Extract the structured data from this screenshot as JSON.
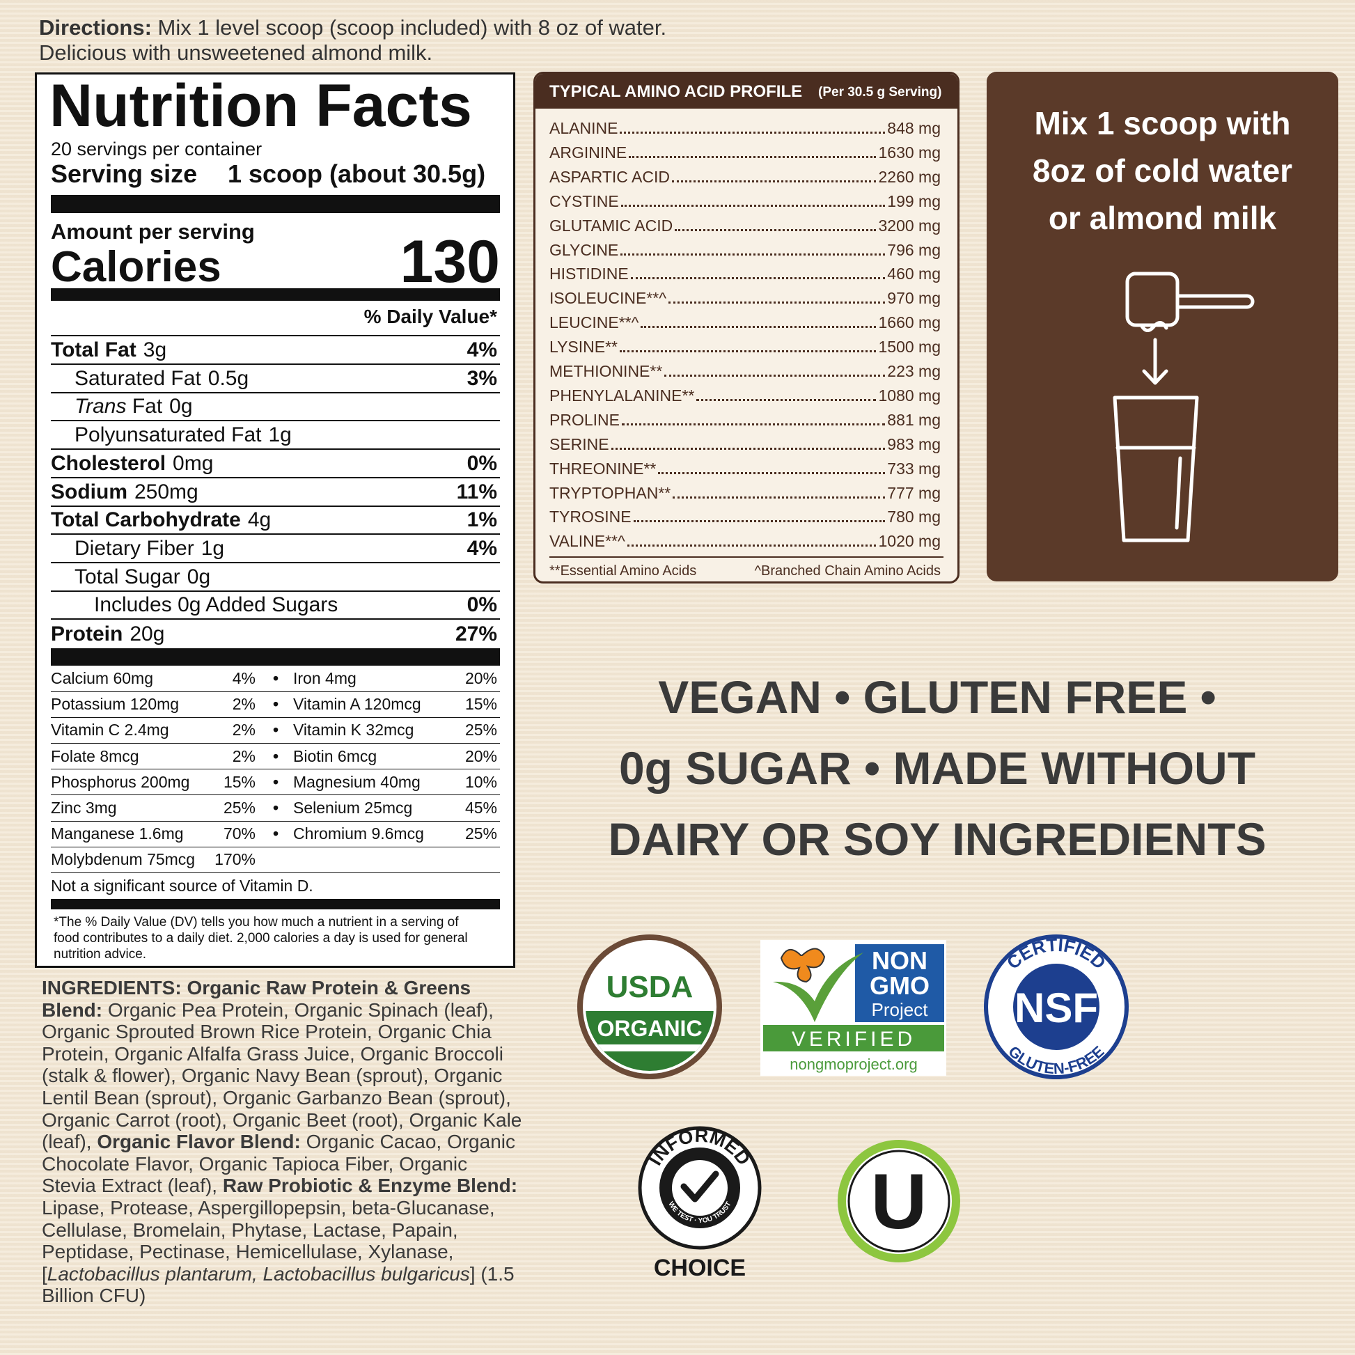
{
  "directions": {
    "label": "Directions:",
    "lines": [
      "Mix 1 level scoop (scoop included) with 8 oz of water.",
      "Delicious with unsweetened almond milk."
    ]
  },
  "nutrition_facts": {
    "title": "Nutrition Facts",
    "servings": "20 servings per container",
    "serving_size_label": "Serving size",
    "serving_size": "1 scoop (about 30.5g)",
    "amount_per_serving": "Amount per serving",
    "calories_label": "Calories",
    "calories": 130,
    "daily_value_header": "% Daily Value*",
    "rows": [
      {
        "name": "Total Fat",
        "amount": "3g",
        "dv": "4%"
      },
      {
        "name": "Saturated Fat",
        "amount": "0.5g",
        "dv": "3%"
      },
      {
        "name_italic": "Trans",
        "name": "Fat",
        "amount": "0g"
      },
      {
        "name": "Polyunsaturated Fat",
        "amount": "1g"
      },
      {
        "name": "Cholesterol",
        "amount": "0mg",
        "dv": "0%"
      },
      {
        "name": "Sodium",
        "amount": "250mg",
        "dv": "11%"
      },
      {
        "name": "Total Carbohydrate",
        "amount": "4g",
        "dv": "1%"
      },
      {
        "name": "Dietary Fiber",
        "amount": "1g",
        "dv": "4%"
      },
      {
        "name": "Total Sugar",
        "amount": "0g"
      },
      {
        "name": "Includes 0g Added Sugars",
        "dv": "0%"
      },
      {
        "name": "Protein",
        "amount": "20g",
        "dv": "27%"
      }
    ],
    "micronutrients": [
      [
        {
          "name": "Calcium 60mg",
          "dv": "4%"
        },
        {
          "name": "Iron 4mg",
          "dv": "20%"
        }
      ],
      [
        {
          "name": "Potassium 120mg",
          "dv": "2%"
        },
        {
          "name": "Vitamin A 120mcg",
          "dv": "15%"
        }
      ],
      [
        {
          "name": "Vitamin C 2.4mg",
          "dv": "2%"
        },
        {
          "name": "Vitamin K 32mcg",
          "dv": "25%"
        }
      ],
      [
        {
          "name": "Folate 8mcg",
          "dv": "2%"
        },
        {
          "name": "Biotin 6mcg",
          "dv": "20%"
        }
      ],
      [
        {
          "name": "Phosphorus 200mg",
          "dv": "15%"
        },
        {
          "name": "Magnesium 40mg",
          "dv": "10%"
        }
      ],
      [
        {
          "name": "Zinc 3mg",
          "dv": "25%"
        },
        {
          "name": "Selenium 25mcg",
          "dv": "45%"
        }
      ],
      [
        {
          "name": "Manganese 1.6mg",
          "dv": "70%"
        },
        {
          "name": "Chromium 9.6mcg",
          "dv": "25%"
        }
      ],
      [
        {
          "name": "Molybdenum 75mcg",
          "dv": "170%"
        }
      ]
    ],
    "vitamin_d_note": "Not a significant source of Vitamin D.",
    "footnote": "*The % Daily Value (DV) tells you how much a nutrient in a serving of food contributes to a daily diet. 2,000 calories a day is used for general nutrition advice."
  },
  "amino_acid_profile": {
    "title": "TYPICAL AMINO ACID PROFILE",
    "subtitle": "(Per 30.5 g Serving)",
    "rows": [
      [
        "ALANINE",
        "848 mg"
      ],
      [
        "ARGININE",
        "1630 mg"
      ],
      [
        "ASPARTIC ACID",
        "2260 mg"
      ],
      [
        "CYSTINE",
        "199 mg"
      ],
      [
        "GLUTAMIC ACID",
        "3200 mg"
      ],
      [
        "GLYCINE",
        "796 mg"
      ],
      [
        "HISTIDINE",
        "460 mg"
      ],
      [
        "ISOLEUCINE**^",
        "970 mg"
      ],
      [
        "LEUCINE**^",
        "1660 mg"
      ],
      [
        "LYSINE**",
        "1500 mg"
      ],
      [
        "METHIONINE**",
        "223 mg"
      ],
      [
        "PHENYLALANINE**",
        "1080 mg"
      ],
      [
        "PROLINE",
        "881 mg"
      ],
      [
        "SERINE",
        "983 mg"
      ],
      [
        "THREONINE**",
        "733 mg"
      ],
      [
        "TRYPTOPHAN**",
        "777 mg"
      ],
      [
        "TYROSINE",
        "780 mg"
      ],
      [
        "VALINE**^",
        "1020 mg"
      ]
    ],
    "footnotes": [
      "**Essential Amino Acids",
      "^Branched Chain Amino Acids"
    ]
  },
  "mix_instructions": {
    "lines": [
      "Mix 1 scoop with",
      "8oz of cold water",
      "or almond milk"
    ]
  },
  "claims": {
    "lines": [
      "VEGAN • GLUTEN FREE •",
      "0g SUGAR • MADE WITHOUT",
      "DAIRY OR SOY INGREDIENTS"
    ]
  },
  "ingredients": [
    "INGREDIENTS: Organic Raw Protein & Greens Blend:",
    "Organic Pea Protein, Organic Spinach (leaf), Organic Sprouted Brown Rice Protein, Organic Chia Protein, Organic Alfalfa Grass Juice, Organic Broccoli (stalk & flower), Organic Navy Bean (sprout), Organic Lentil Bean (sprout), Organic Garbanzo Bean (sprout), Organic Carrot (root), Organic Beet (root), Organic Kale (leaf),",
    "Organic Flavor Blend:",
    "Organic Cacao, Organic Chocolate Flavor, Organic Tapioca Fiber, Organic Stevia Extract (leaf),",
    "Raw Probiotic & Enzyme Blend:",
    "Lipase, Protease, Aspergillopepsin, beta-Glucanase, Cellulase, Bromelain, Phytase, Lactase, Papain, Peptidase, Pectinase, Hemicellulase, Xylanase, [",
    "Lactobacillus plantarum, Lactobacillus bulgaricus",
    "] (1.5 Billion CFU)"
  ],
  "certifications": {
    "usda": {
      "top": "USDA",
      "bottom": "ORGANIC"
    },
    "non_gmo": {
      "lines": [
        "NON",
        "GMO",
        "Project"
      ],
      "verified": "VERIFIED",
      "url": "nongmoproject.org"
    },
    "nsf": {
      "top": "CERTIFIED",
      "center": "NSF",
      "bottom": "GLUTEN-FREE"
    },
    "informed_choice": {
      "top": "INFORMED",
      "bottom": "WE TEST · YOU TRUST",
      "label": "CHOICE"
    },
    "kosher": {
      "symbol": "U"
    }
  }
}
